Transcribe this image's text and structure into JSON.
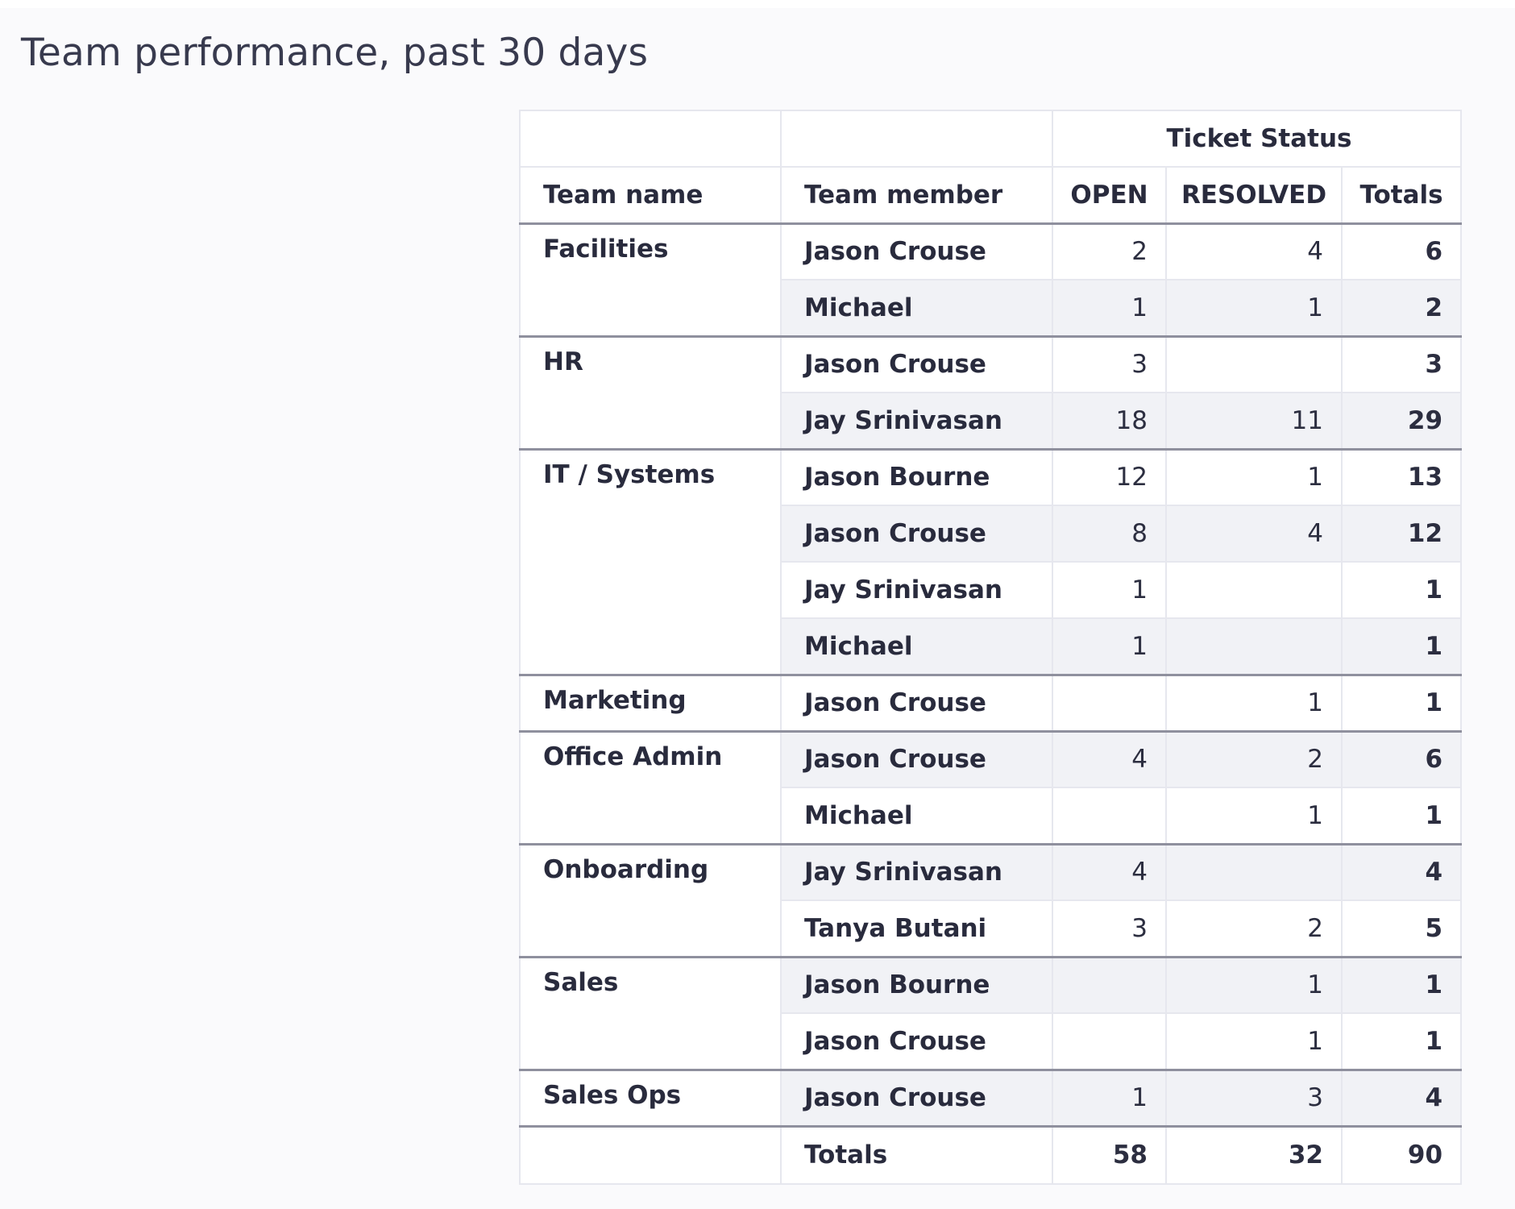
{
  "page": {
    "title": "Team performance, past 30 days"
  },
  "table": {
    "group_header": "Ticket Status",
    "columns": {
      "team": "Team name",
      "member": "Team member",
      "open": "OPEN",
      "resolved": "RESOLVED",
      "total": "Totals"
    },
    "groups": [
      {
        "team": "Facilities",
        "rows": [
          {
            "member": "Jason Crouse",
            "open": "2",
            "resolved": "4",
            "total": "6"
          },
          {
            "member": "Michael",
            "open": "1",
            "resolved": "1",
            "total": "2"
          }
        ]
      },
      {
        "team": "HR",
        "rows": [
          {
            "member": "Jason Crouse",
            "open": "3",
            "resolved": "",
            "total": "3"
          },
          {
            "member": "Jay Srinivasan",
            "open": "18",
            "resolved": "11",
            "total": "29"
          }
        ]
      },
      {
        "team": "IT / Systems",
        "rows": [
          {
            "member": "Jason Bourne",
            "open": "12",
            "resolved": "1",
            "total": "13"
          },
          {
            "member": "Jason Crouse",
            "open": "8",
            "resolved": "4",
            "total": "12"
          },
          {
            "member": "Jay Srinivasan",
            "open": "1",
            "resolved": "",
            "total": "1"
          },
          {
            "member": "Michael",
            "open": "1",
            "resolved": "",
            "total": "1"
          }
        ]
      },
      {
        "team": "Marketing",
        "rows": [
          {
            "member": "Jason Crouse",
            "open": "",
            "resolved": "1",
            "total": "1"
          }
        ]
      },
      {
        "team": "Office Admin",
        "rows": [
          {
            "member": "Jason Crouse",
            "open": "4",
            "resolved": "2",
            "total": "6"
          },
          {
            "member": "Michael",
            "open": "",
            "resolved": "1",
            "total": "1"
          }
        ]
      },
      {
        "team": "Onboarding",
        "rows": [
          {
            "member": "Jay Srinivasan",
            "open": "4",
            "resolved": "",
            "total": "4"
          },
          {
            "member": "Tanya Butani",
            "open": "3",
            "resolved": "2",
            "total": "5"
          }
        ]
      },
      {
        "team": "Sales",
        "rows": [
          {
            "member": "Jason Bourne",
            "open": "",
            "resolved": "1",
            "total": "1"
          },
          {
            "member": "Jason Crouse",
            "open": "",
            "resolved": "1",
            "total": "1"
          }
        ]
      },
      {
        "team": "Sales Ops",
        "rows": [
          {
            "member": "Jason Crouse",
            "open": "1",
            "resolved": "3",
            "total": "4"
          }
        ]
      }
    ],
    "grand_totals": {
      "label": "Totals",
      "open": "58",
      "resolved": "32",
      "total": "90"
    }
  }
}
